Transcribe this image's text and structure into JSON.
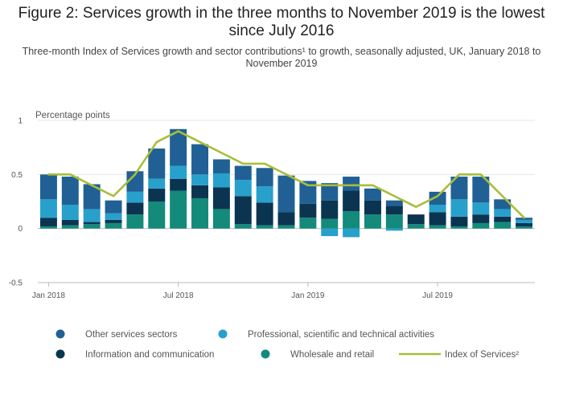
{
  "chart_data": {
    "type": "bar",
    "title": "Figure 2: Services growth in the three months to November 2019 is the lowest since July 2016",
    "subtitle": "Three-month Index of Services growth and sector contributions¹ to growth, seasonally adjusted, UK, January 2018 to November 2019",
    "ylabel": "Percentage points",
    "ylim": [
      -0.5,
      1
    ],
    "yticks": [
      -0.5,
      0,
      0.5,
      1
    ],
    "ytick_labels": [
      "-0.5",
      "0",
      "0.5",
      "1"
    ],
    "xtick_labels": [
      {
        "label": "Jan 2018",
        "index": 0
      },
      {
        "label": "Jul 2018",
        "index": 6
      },
      {
        "label": "Jan 2019",
        "index": 12
      },
      {
        "label": "Jul 2019",
        "index": 18
      }
    ],
    "categories": [
      "Jan 2018",
      "Feb 2018",
      "Mar 2018",
      "Apr 2018",
      "May 2018",
      "Jun 2018",
      "Jul 2018",
      "Aug 2018",
      "Sep 2018",
      "Oct 2018",
      "Nov 2018",
      "Dec 2018",
      "Jan 2019",
      "Feb 2019",
      "Mar 2019",
      "Apr 2019",
      "May 2019",
      "Jun 2019",
      "Jul 2019",
      "Aug 2019",
      "Sep 2019",
      "Oct 2019",
      "Nov 2019"
    ],
    "series": [
      {
        "name": "Wholesale and retail",
        "color": "#138a7a",
        "values": [
          0.02,
          0.03,
          0.04,
          0.05,
          0.13,
          0.25,
          0.35,
          0.28,
          0.18,
          0.04,
          0.03,
          0.03,
          0.1,
          0.09,
          0.16,
          0.13,
          0.13,
          0.04,
          0.03,
          0.02,
          0.05,
          0.06,
          0.02
        ]
      },
      {
        "name": "Information and communication",
        "color": "#0b3451",
        "values": [
          0.08,
          0.05,
          0.02,
          0.03,
          0.11,
          0.12,
          0.11,
          0.12,
          0.2,
          0.26,
          0.21,
          0.12,
          0.13,
          0.17,
          0.19,
          0.13,
          0.08,
          0.09,
          0.12,
          0.09,
          0.08,
          0.05,
          0.03
        ]
      },
      {
        "name": "Professional, scientific and technical activities",
        "color": "#27a0cc",
        "values": [
          0.17,
          0.14,
          0.12,
          0.06,
          0.1,
          0.09,
          0.12,
          0.1,
          0.13,
          0.15,
          0.15,
          0.0,
          0.0,
          -0.07,
          -0.08,
          0.0,
          -0.02,
          0.0,
          0.07,
          0.16,
          0.11,
          0.07,
          0.03
        ]
      },
      {
        "name": "Other services sectors",
        "color": "#206095",
        "values": [
          0.23,
          0.26,
          0.23,
          0.12,
          0.19,
          0.28,
          0.34,
          0.28,
          0.13,
          0.13,
          0.17,
          0.34,
          0.21,
          0.16,
          0.13,
          0.11,
          0.05,
          0.0,
          0.12,
          0.21,
          0.24,
          0.09,
          0.02
        ]
      }
    ],
    "line_series": {
      "name": "Index of Services²",
      "color": "#a8bd3a",
      "values": [
        0.5,
        0.5,
        0.4,
        0.3,
        0.5,
        0.8,
        0.9,
        0.8,
        0.7,
        0.6,
        0.6,
        0.5,
        0.4,
        0.4,
        0.4,
        0.4,
        0.3,
        0.2,
        0.3,
        0.5,
        0.5,
        0.3,
        0.1
      ]
    },
    "legend": {
      "placement": "bottom",
      "items": [
        {
          "label": "Other services sectors",
          "color": "#206095",
          "marker": "circle"
        },
        {
          "label": "Professional, scientific and technical activities",
          "color": "#27a0cc",
          "marker": "circle"
        },
        {
          "label": "Information and communication",
          "color": "#0b3451",
          "marker": "circle"
        },
        {
          "label": "Wholesale and retail",
          "color": "#138a7a",
          "marker": "circle"
        },
        {
          "label": "Index of Services²",
          "color": "#a8bd3a",
          "marker": "line"
        }
      ]
    },
    "grid": true
  }
}
